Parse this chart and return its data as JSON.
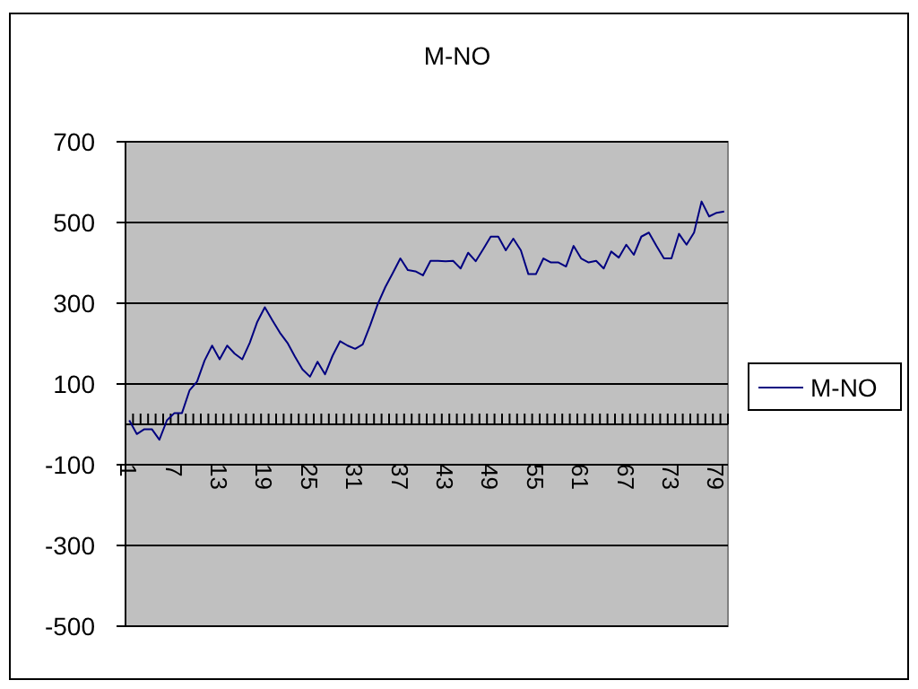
{
  "chart_data": {
    "type": "line",
    "title": "M-NO",
    "categories": [
      "1",
      null,
      null,
      null,
      null,
      null,
      "7",
      null,
      null,
      null,
      null,
      null,
      "13",
      null,
      null,
      null,
      null,
      null,
      "19",
      null,
      null,
      null,
      null,
      null,
      "25",
      null,
      null,
      null,
      null,
      null,
      "31",
      null,
      null,
      null,
      null,
      null,
      "37",
      null,
      null,
      null,
      null,
      null,
      "43",
      null,
      null,
      null,
      null,
      null,
      "49",
      null,
      null,
      null,
      null,
      null,
      "55",
      null,
      null,
      null,
      null,
      null,
      "61",
      null,
      null,
      null,
      null,
      null,
      "67",
      null,
      null,
      null,
      null,
      null,
      "73",
      null,
      null,
      null,
      null,
      null,
      "79",
      null
    ],
    "series": [
      {
        "name": "M-NO",
        "color": "#000080",
        "values": [
          10,
          -24,
          -12,
          -12,
          -38,
          10,
          28,
          28,
          84,
          106,
          158,
          195,
          161,
          195,
          175,
          161,
          202,
          254,
          290,
          258,
          227,
          202,
          168,
          136,
          118,
          155,
          124,
          170,
          206,
          195,
          187,
          198,
          246,
          298,
          340,
          375,
          411,
          382,
          379,
          369,
          405,
          405,
          404,
          405,
          386,
          425,
          404,
          434,
          465,
          465,
          431,
          460,
          431,
          372,
          372,
          411,
          401,
          401,
          391,
          442,
          411,
          401,
          405,
          386,
          428,
          413,
          445,
          420,
          465,
          475,
          442,
          411,
          411,
          472,
          445,
          475,
          552,
          515,
          524,
          527
        ]
      }
    ],
    "ylim": [
      -500,
      700
    ],
    "yticks": [
      -500,
      -300,
      -100,
      100,
      300,
      500,
      700
    ],
    "grid": "y",
    "legend": "right",
    "marker": "none",
    "line_style": "solid"
  }
}
